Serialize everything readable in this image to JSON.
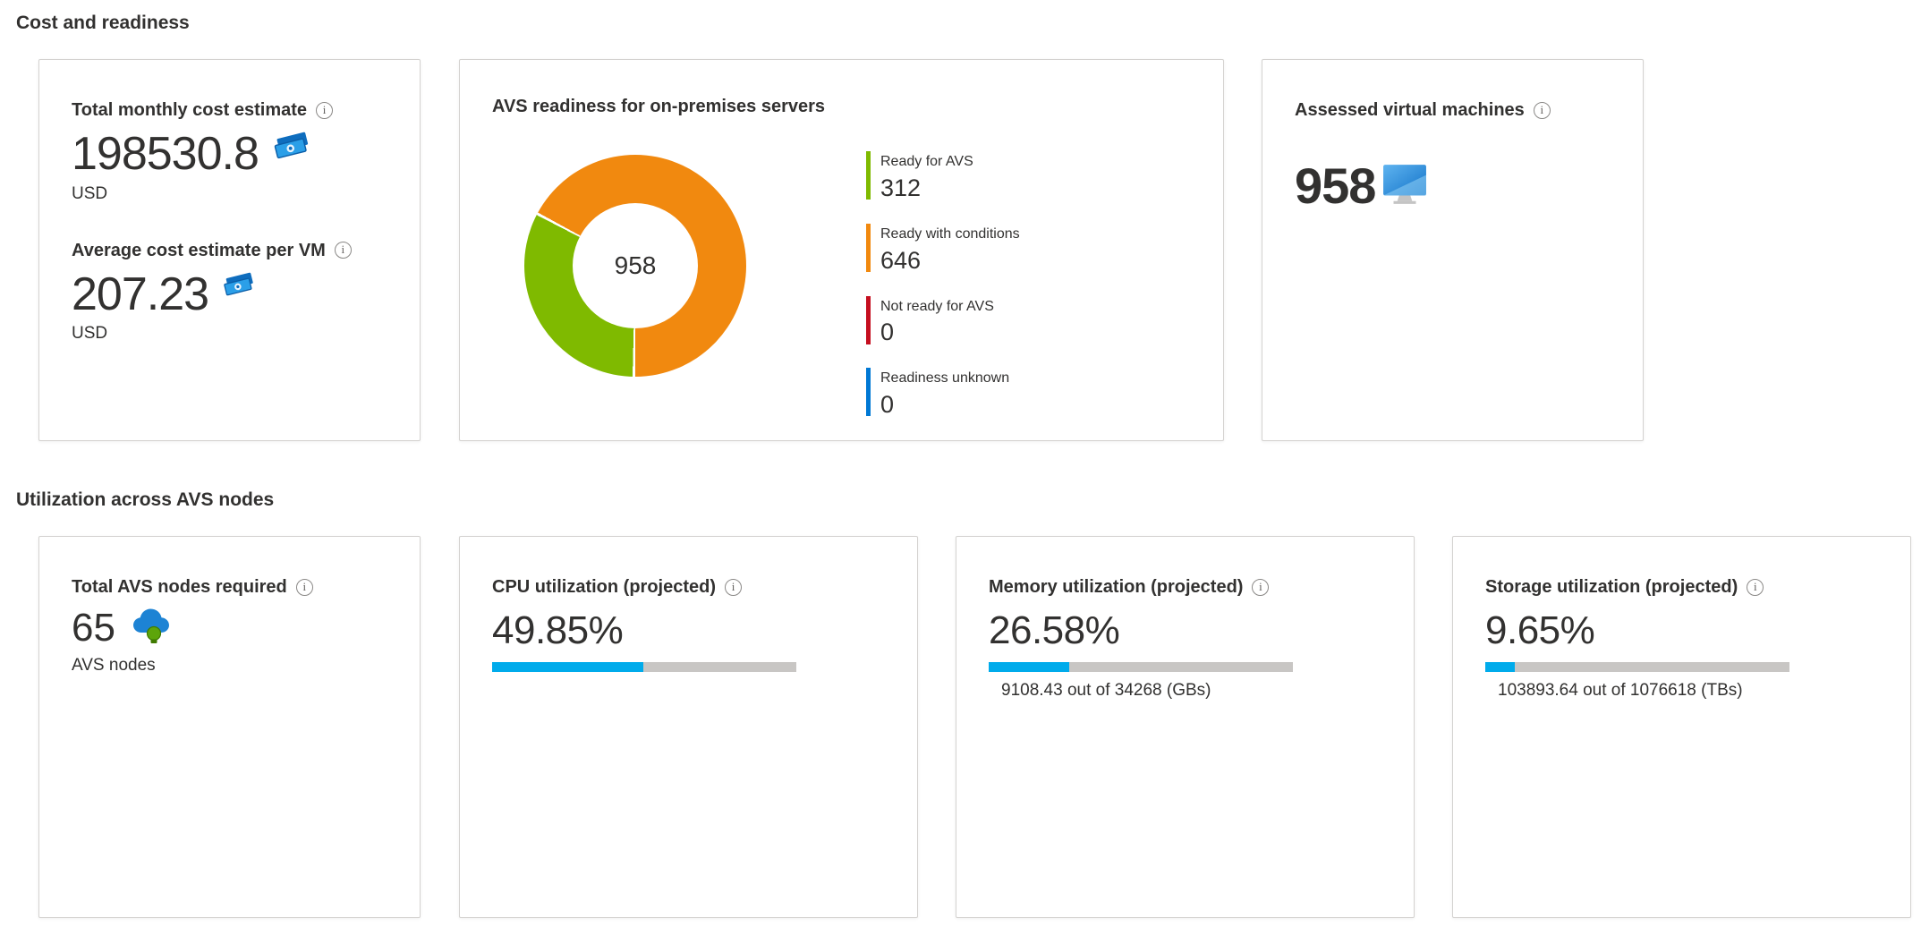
{
  "icons": {
    "info": "i"
  },
  "sections": {
    "cost_and_readiness": "Cost and readiness",
    "utilization": "Utilization across AVS nodes"
  },
  "cost_card": {
    "monthly_label": "Total monthly cost estimate",
    "monthly_value": "198530.8",
    "monthly_unit": "USD",
    "per_vm_label": "Average cost estimate per VM",
    "per_vm_value": "207.23",
    "per_vm_unit": "USD"
  },
  "readiness_card": {
    "title": "AVS readiness for on-premises servers",
    "center_total": "958",
    "legend": [
      {
        "label": "Ready for AVS",
        "value": "312",
        "color": "#7fba00"
      },
      {
        "label": "Ready with conditions",
        "value": "646",
        "color": "#f1890f"
      },
      {
        "label": "Not ready for AVS",
        "value": "0",
        "color": "#c50e1f"
      },
      {
        "label": "Readiness unknown",
        "value": "0",
        "color": "#0078d4"
      }
    ]
  },
  "assessed_card": {
    "title": "Assessed virtual machines",
    "value": "958"
  },
  "nodes_card": {
    "title": "Total AVS nodes required",
    "value": "65",
    "unit": "AVS nodes"
  },
  "cpu_card": {
    "title": "CPU utilization (projected)",
    "value": "49.85%",
    "percent": 49.85
  },
  "memory_card": {
    "title": "Memory utilization (projected)",
    "value": "26.58%",
    "percent": 26.58,
    "detail": "9108.43 out of 34268 (GBs)"
  },
  "storage_card": {
    "title": "Storage utilization (projected)",
    "value": "9.65%",
    "percent": 9.65,
    "detail": "103893.64 out of 1076618 (TBs)"
  },
  "colors": {
    "progress_fill": "#00abeb",
    "progress_track": "#c8c6c4",
    "text": "#323130"
  },
  "chart_data": [
    {
      "type": "pie",
      "subtype": "donut",
      "title": "AVS readiness for on-premises servers",
      "center_label": "958",
      "total": 958,
      "categories": [
        "Ready for AVS",
        "Ready with conditions",
        "Not ready for AVS",
        "Readiness unknown"
      ],
      "values": [
        312,
        646,
        0,
        0
      ],
      "colors": [
        "#7fba00",
        "#f1890f",
        "#c50e1f",
        "#0078d4"
      ],
      "start_angle_deg": 180,
      "legend_position": "right"
    },
    {
      "type": "bar",
      "title": "CPU utilization (projected)",
      "categories": [
        "CPU"
      ],
      "values": [
        49.85
      ],
      "unit": "%",
      "xlim": [
        0,
        100
      ]
    },
    {
      "type": "bar",
      "title": "Memory utilization (projected)",
      "categories": [
        "Memory"
      ],
      "values": [
        26.58
      ],
      "unit": "%",
      "used": 9108.43,
      "capacity": 34268,
      "capacity_unit": "GBs",
      "xlim": [
        0,
        100
      ]
    },
    {
      "type": "bar",
      "title": "Storage utilization (projected)",
      "categories": [
        "Storage"
      ],
      "values": [
        9.65
      ],
      "unit": "%",
      "used": 103893.64,
      "capacity": 1076618,
      "capacity_unit": "TBs",
      "xlim": [
        0,
        100
      ]
    }
  ]
}
